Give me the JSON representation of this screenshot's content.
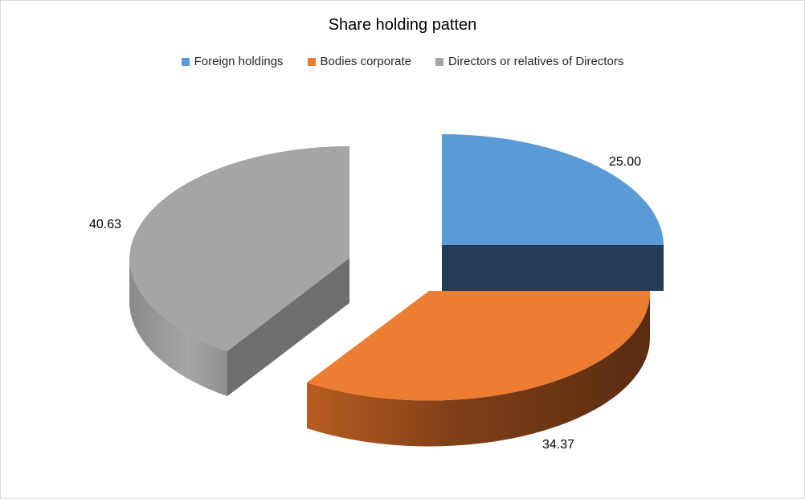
{
  "chart_data": {
    "type": "pie",
    "title": "Share holding patten",
    "legend_position": "top",
    "categories": [
      "Foreign holdings",
      "Bodies corporate",
      "Directors or relatives of Directors"
    ],
    "values": [
      25.0,
      34.37,
      40.63
    ],
    "value_labels": [
      "25.00",
      "34.37",
      "40.63"
    ],
    "colors": [
      "#5b9bd5",
      "#ed7d31",
      "#a5a5a5"
    ],
    "style": "3d-exploded"
  }
}
